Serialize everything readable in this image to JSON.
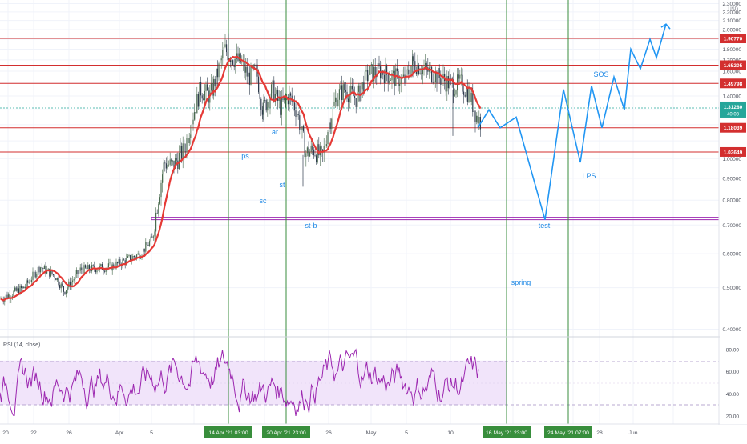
{
  "chart_data": [
    {
      "type": "candlestick",
      "symbol_currency": "USD",
      "x_tick_labels": [
        "20",
        "22",
        "26",
        "Apr",
        "5",
        "26",
        "May",
        "5",
        "10",
        "28",
        "Jun"
      ],
      "y_axis": {
        "scale": "log",
        "ylim": [
          0.38,
          2.4
        ],
        "tick_labels": [
          "2.30000",
          "2.20000",
          "2.10000",
          "2.00000",
          "1.80000",
          "1.70000",
          "1.60000",
          "1.40000",
          "1.30000",
          "1.20000",
          "1.00000",
          "0.90000",
          "0.80000",
          "0.70000",
          "0.60000",
          "0.50000",
          "0.40000"
        ]
      },
      "price_levels": [
        {
          "value": 1.9077,
          "label": "1.90770",
          "color": "#d32f2f"
        },
        {
          "value": 1.65205,
          "label": "1.65205",
          "color": "#d32f2f"
        },
        {
          "value": 1.49798,
          "label": "1.49798",
          "color": "#d32f2f"
        },
        {
          "value": 1.18039,
          "label": "1.18039",
          "color": "#d32f2f"
        },
        {
          "value": 1.03649,
          "label": "1.03649",
          "color": "#d32f2f"
        }
      ],
      "support_level": {
        "value": 0.725,
        "color": "#9c27b0"
      },
      "current_price": {
        "value": 1.3128,
        "label": "1.31280",
        "countdown": "40:03",
        "color": "#26a69a"
      },
      "vertical_markers": [
        {
          "label": "14 Apr '21  03:00"
        },
        {
          "label": "20 Apr '21  23:00"
        },
        {
          "label": "16 May '21  23:00"
        },
        {
          "label": "24 May '21  07:00"
        }
      ],
      "wyckoff_annotations": [
        "ar",
        "ps",
        "sc",
        "st",
        "st-b",
        "spring",
        "test",
        "LPS",
        "SOS"
      ],
      "projection_path": [
        1.18,
        1.3,
        1.18,
        1.25,
        0.72,
        1.45,
        0.98,
        1.48,
        1.18,
        1.55,
        1.3,
        1.8,
        1.62,
        1.9,
        1.72,
        2.06
      ],
      "moving_average_color": "#e53935",
      "projection_color": "#2196f3",
      "marker_color": "#388e3c"
    },
    {
      "type": "line",
      "title": "RSI (14, close)",
      "y_axis": {
        "ylim": [
          14,
          88
        ],
        "tick_labels": [
          "80.00",
          "60.00",
          "40.00",
          "20.00"
        ]
      },
      "band": [
        30,
        70
      ],
      "line_color": "#9c27b0",
      "band_color": "#f1e4fa"
    }
  ]
}
